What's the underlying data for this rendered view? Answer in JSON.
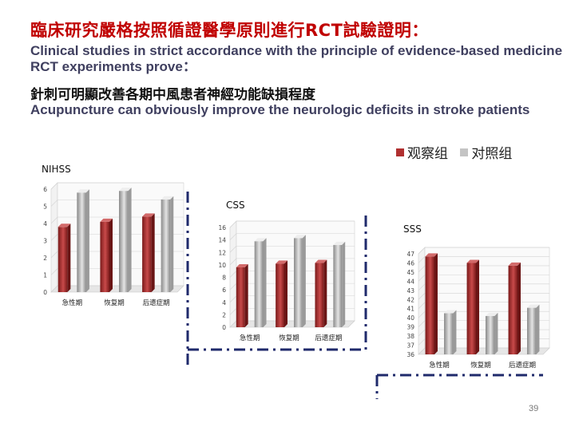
{
  "title_cn": "臨床研究嚴格按照循證醫學原則進行RCT試驗證明：",
  "title_en": "Clinical studies in strict accordance with the principle of evidence-based medicine RCT experiments prove：",
  "subtitle_cn": "針刺可明顯改善各期中風患者神經功能缺損程度",
  "subtitle_en": "Acupuncture can obviously improve the neurologic deficits in stroke patients",
  "legend": [
    {
      "name": "观察组",
      "color": "#b03030"
    },
    {
      "name": "对照组",
      "color": "#c4c4c4"
    }
  ],
  "page_number": "39",
  "colors": {
    "observation": "#b03030",
    "control": "#c4c4c4",
    "dash": "#1f2a6b"
  },
  "chart_data": [
    {
      "type": "bar",
      "title": "NIHSS",
      "categories": [
        "急性期",
        "恢复期",
        "后遗症期"
      ],
      "ylim": [
        0,
        6
      ],
      "yticks": [
        0,
        1,
        2,
        3,
        4,
        5,
        6
      ],
      "grid": true,
      "series": [
        {
          "name": "观察组",
          "values": [
            3.8,
            4.1,
            4.4
          ]
        },
        {
          "name": "对照组",
          "values": [
            5.8,
            5.9,
            5.4
          ]
        }
      ]
    },
    {
      "type": "bar",
      "title": "CSS",
      "categories": [
        "急性期",
        "恢复期",
        "后遗症期"
      ],
      "ylim": [
        0,
        16
      ],
      "yticks": [
        0,
        2,
        4,
        6,
        8,
        10,
        12,
        14,
        16
      ],
      "grid": true,
      "series": [
        {
          "name": "观察组",
          "values": [
            9.6,
            10.2,
            10.3
          ]
        },
        {
          "name": "对照组",
          "values": [
            13.8,
            14.3,
            13.2
          ]
        }
      ]
    },
    {
      "type": "bar",
      "title": "SSS",
      "categories": [
        "急性期",
        "恢复期",
        "后遗症期"
      ],
      "ylim": [
        36,
        47
      ],
      "yticks": [
        36,
        37,
        38,
        39,
        40,
        41,
        42,
        43,
        44,
        45,
        46,
        47
      ],
      "grid": true,
      "series": [
        {
          "name": "观察组",
          "values": [
            46.7,
            46.0,
            45.7
          ]
        },
        {
          "name": "对照组",
          "values": [
            40.5,
            40.2,
            41.1
          ]
        }
      ]
    }
  ]
}
